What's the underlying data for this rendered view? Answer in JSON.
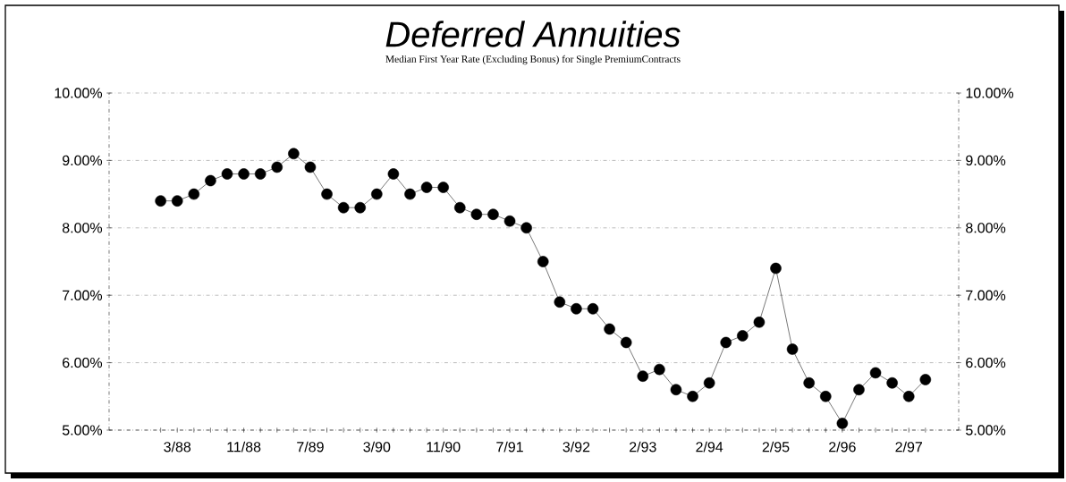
{
  "chart_data": {
    "type": "line",
    "title": "Deferred Annuities",
    "subtitle": "Median First Year Rate (Excluding Bonus) for Single PremiumContracts",
    "categories": [
      null,
      "3/88",
      null,
      null,
      null,
      "11/88",
      null,
      null,
      null,
      "7/89",
      null,
      null,
      null,
      "3/90",
      null,
      null,
      null,
      "11/90",
      null,
      null,
      null,
      "7/91",
      null,
      null,
      null,
      "3/92",
      null,
      null,
      null,
      "2/93",
      null,
      null,
      null,
      "2/94",
      null,
      null,
      null,
      "2/95",
      null,
      null,
      null,
      "2/96",
      null,
      null,
      null,
      "2/97",
      null
    ],
    "values": [
      8.4,
      8.4,
      8.5,
      8.7,
      8.8,
      8.8,
      8.8,
      8.9,
      9.1,
      8.9,
      8.5,
      8.3,
      8.3,
      8.5,
      8.8,
      8.5,
      8.6,
      8.6,
      8.3,
      8.2,
      8.2,
      8.1,
      8.0,
      7.5,
      6.9,
      6.8,
      6.8,
      6.5,
      6.3,
      5.8,
      5.9,
      5.6,
      5.5,
      5.7,
      6.3,
      6.4,
      6.6,
      7.4,
      6.2,
      5.7,
      5.5,
      5.1,
      5.6,
      5.85,
      5.7,
      5.5,
      5.75
    ],
    "color": "#000000",
    "marker": "circle",
    "line_style": "solid",
    "grid": "y",
    "ylim": [
      5,
      10
    ],
    "yticks": [
      {
        "value": 5,
        "label": "5.00%"
      },
      {
        "value": 6,
        "label": "6.00%"
      },
      {
        "value": 7,
        "label": "7.00%"
      },
      {
        "value": 8,
        "label": "8.00%"
      },
      {
        "value": 9,
        "label": "9.00%"
      },
      {
        "value": 10,
        "label": "10.00%"
      }
    ],
    "y2lim": [
      5,
      10
    ],
    "y2ticks": [
      {
        "value": 5,
        "label": "5.00%"
      },
      {
        "value": 6,
        "label": "6.00%"
      },
      {
        "value": 7,
        "label": "7.00%"
      },
      {
        "value": 8,
        "label": "8.00%"
      },
      {
        "value": 9,
        "label": "9.00%"
      },
      {
        "value": 10,
        "label": "10.00%"
      }
    ]
  }
}
